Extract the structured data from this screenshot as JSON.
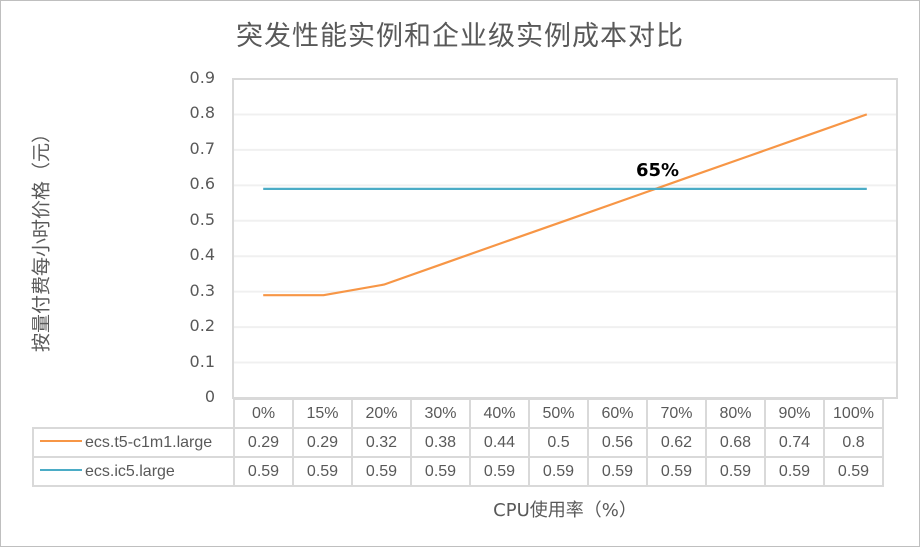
{
  "chart_data": {
    "type": "line",
    "title": "突发性能实例和企业级实例成本对比",
    "xlabel": "CPU使用率（%）",
    "ylabel": "按量付费每小时价格（元）",
    "categories": [
      "0%",
      "15%",
      "20%",
      "30%",
      "40%",
      "50%",
      "60%",
      "70%",
      "80%",
      "90%",
      "100%"
    ],
    "series": [
      {
        "name": "ecs.t5-c1m1.large",
        "color": "#F79646",
        "values": [
          0.29,
          0.29,
          0.32,
          0.38,
          0.44,
          0.5,
          0.56,
          0.62,
          0.68,
          0.74,
          0.8
        ],
        "labels": [
          "0.29",
          "0.29",
          "0.32",
          "0.38",
          "0.44",
          "0.5",
          "0.56",
          "0.62",
          "0.68",
          "0.74",
          "0.8"
        ]
      },
      {
        "name": "ecs.ic5.large",
        "color": "#4BACC6",
        "values": [
          0.59,
          0.59,
          0.59,
          0.59,
          0.59,
          0.59,
          0.59,
          0.59,
          0.59,
          0.59,
          0.59
        ],
        "labels": [
          "0.59",
          "0.59",
          "0.59",
          "0.59",
          "0.59",
          "0.59",
          "0.59",
          "0.59",
          "0.59",
          "0.59",
          "0.59"
        ]
      }
    ],
    "ylim": [
      0,
      0.9
    ],
    "yticks": [
      "0",
      "0.1",
      "0.2",
      "0.3",
      "0.4",
      "0.5",
      "0.6",
      "0.7",
      "0.8",
      "0.9"
    ],
    "grid": true,
    "legend_position": "data-table",
    "annotations": [
      {
        "text": "65%",
        "note": "crossover point of the two series"
      }
    ]
  }
}
